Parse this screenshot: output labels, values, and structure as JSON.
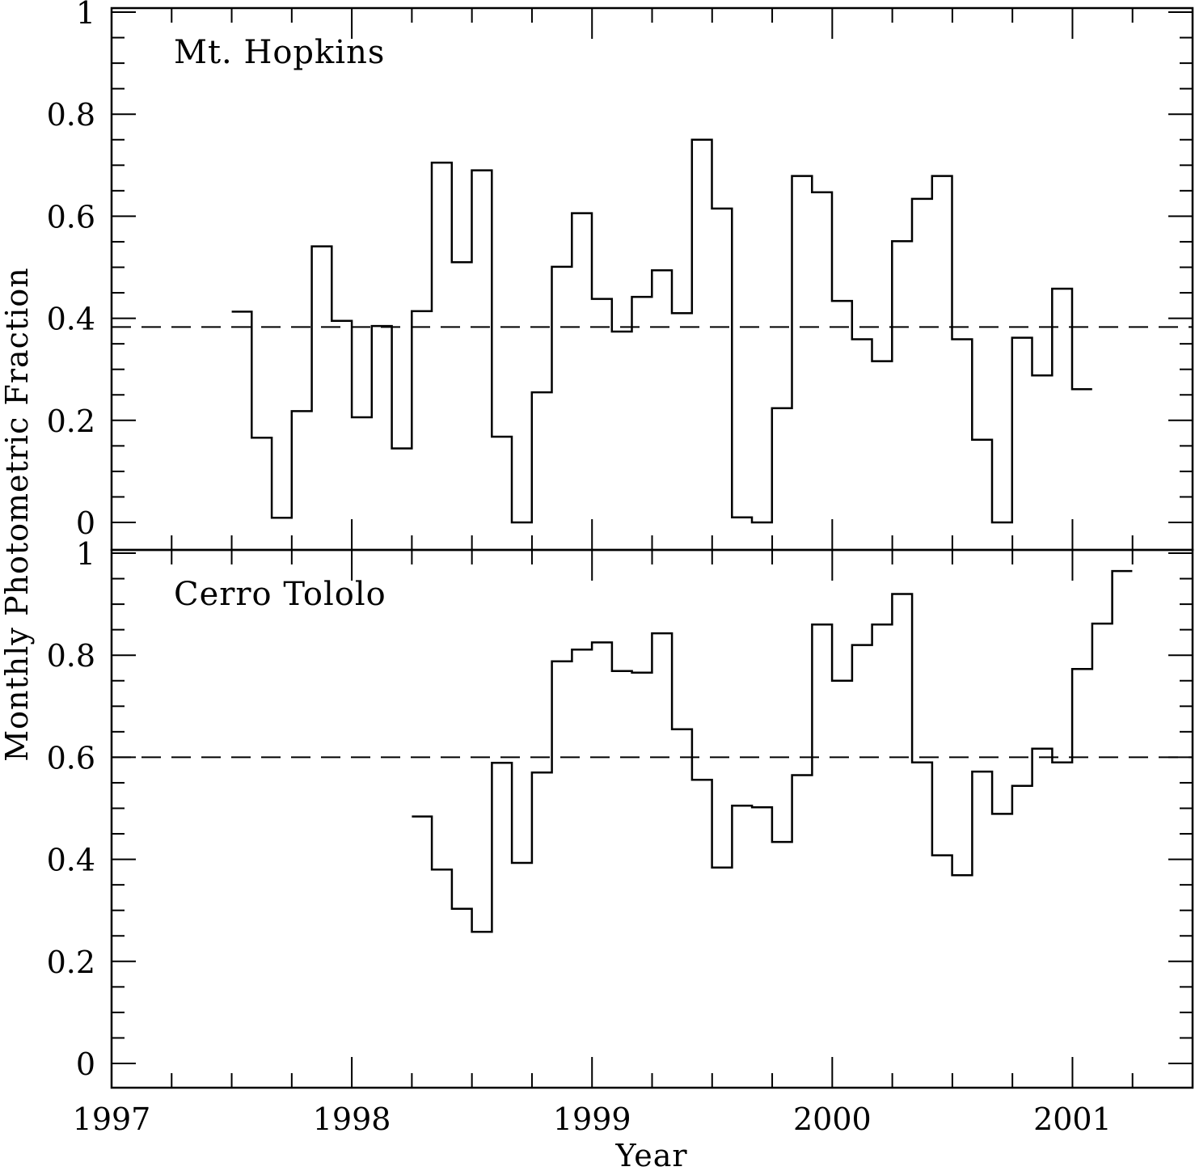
{
  "chart_data": {
    "type": "line",
    "ylabel": "Monthly Photometric Fraction",
    "xlabel": "Year",
    "xlim": [
      1997,
      2001.5
    ],
    "x_ticks": [
      "1997",
      "1998",
      "1999",
      "2000",
      "2001"
    ],
    "bin_width_years": 0.0833,
    "panels": [
      {
        "title": "Mt. Hopkins",
        "ylim": [
          -0.05,
          1
        ],
        "y_ticks": [
          "0",
          "0.2",
          "0.4",
          "0.6",
          "0.8",
          "1"
        ],
        "reference_line": 0.383,
        "series": [
          {
            "start": 1997.5,
            "values": [
              0.413,
              0.166,
              0.009,
              0.218,
              0.541,
              0.395,
              0.206,
              0.385,
              0.145,
              0.414,
              0.705,
              0.51,
              0.69,
              0.168,
              0.0,
              0.255,
              0.501,
              0.606,
              0.438,
              0.374,
              0.442,
              0.494,
              0.41,
              0.75,
              0.615,
              0.01,
              0.0,
              0.224,
              0.679,
              0.647,
              0.434,
              0.359,
              0.316,
              0.551,
              0.634,
              0.679,
              0.359,
              0.162,
              0.0,
              0.362,
              0.288,
              0.458,
              0.261
            ]
          }
        ]
      },
      {
        "title": "Cerro Tololo",
        "ylim": [
          -0.05,
          1
        ],
        "y_ticks": [
          "0",
          "0.2",
          "0.4",
          "0.6",
          "0.8",
          "1"
        ],
        "reference_line": 0.6,
        "series": [
          {
            "start": 1998.25,
            "values": [
              0.484,
              0.38,
              0.303,
              0.258,
              0.589,
              0.393,
              0.57,
              0.788,
              0.811,
              0.825,
              0.769,
              0.766,
              0.843,
              0.655,
              0.556,
              0.384,
              0.505,
              0.502,
              0.434,
              0.565,
              0.86,
              0.75,
              0.82,
              0.86,
              0.92,
              0.59,
              0.408,
              0.369,
              0.572,
              0.489,
              0.544,
              0.617,
              0.59,
              0.773,
              0.862,
              0.965
            ]
          }
        ]
      }
    ]
  }
}
